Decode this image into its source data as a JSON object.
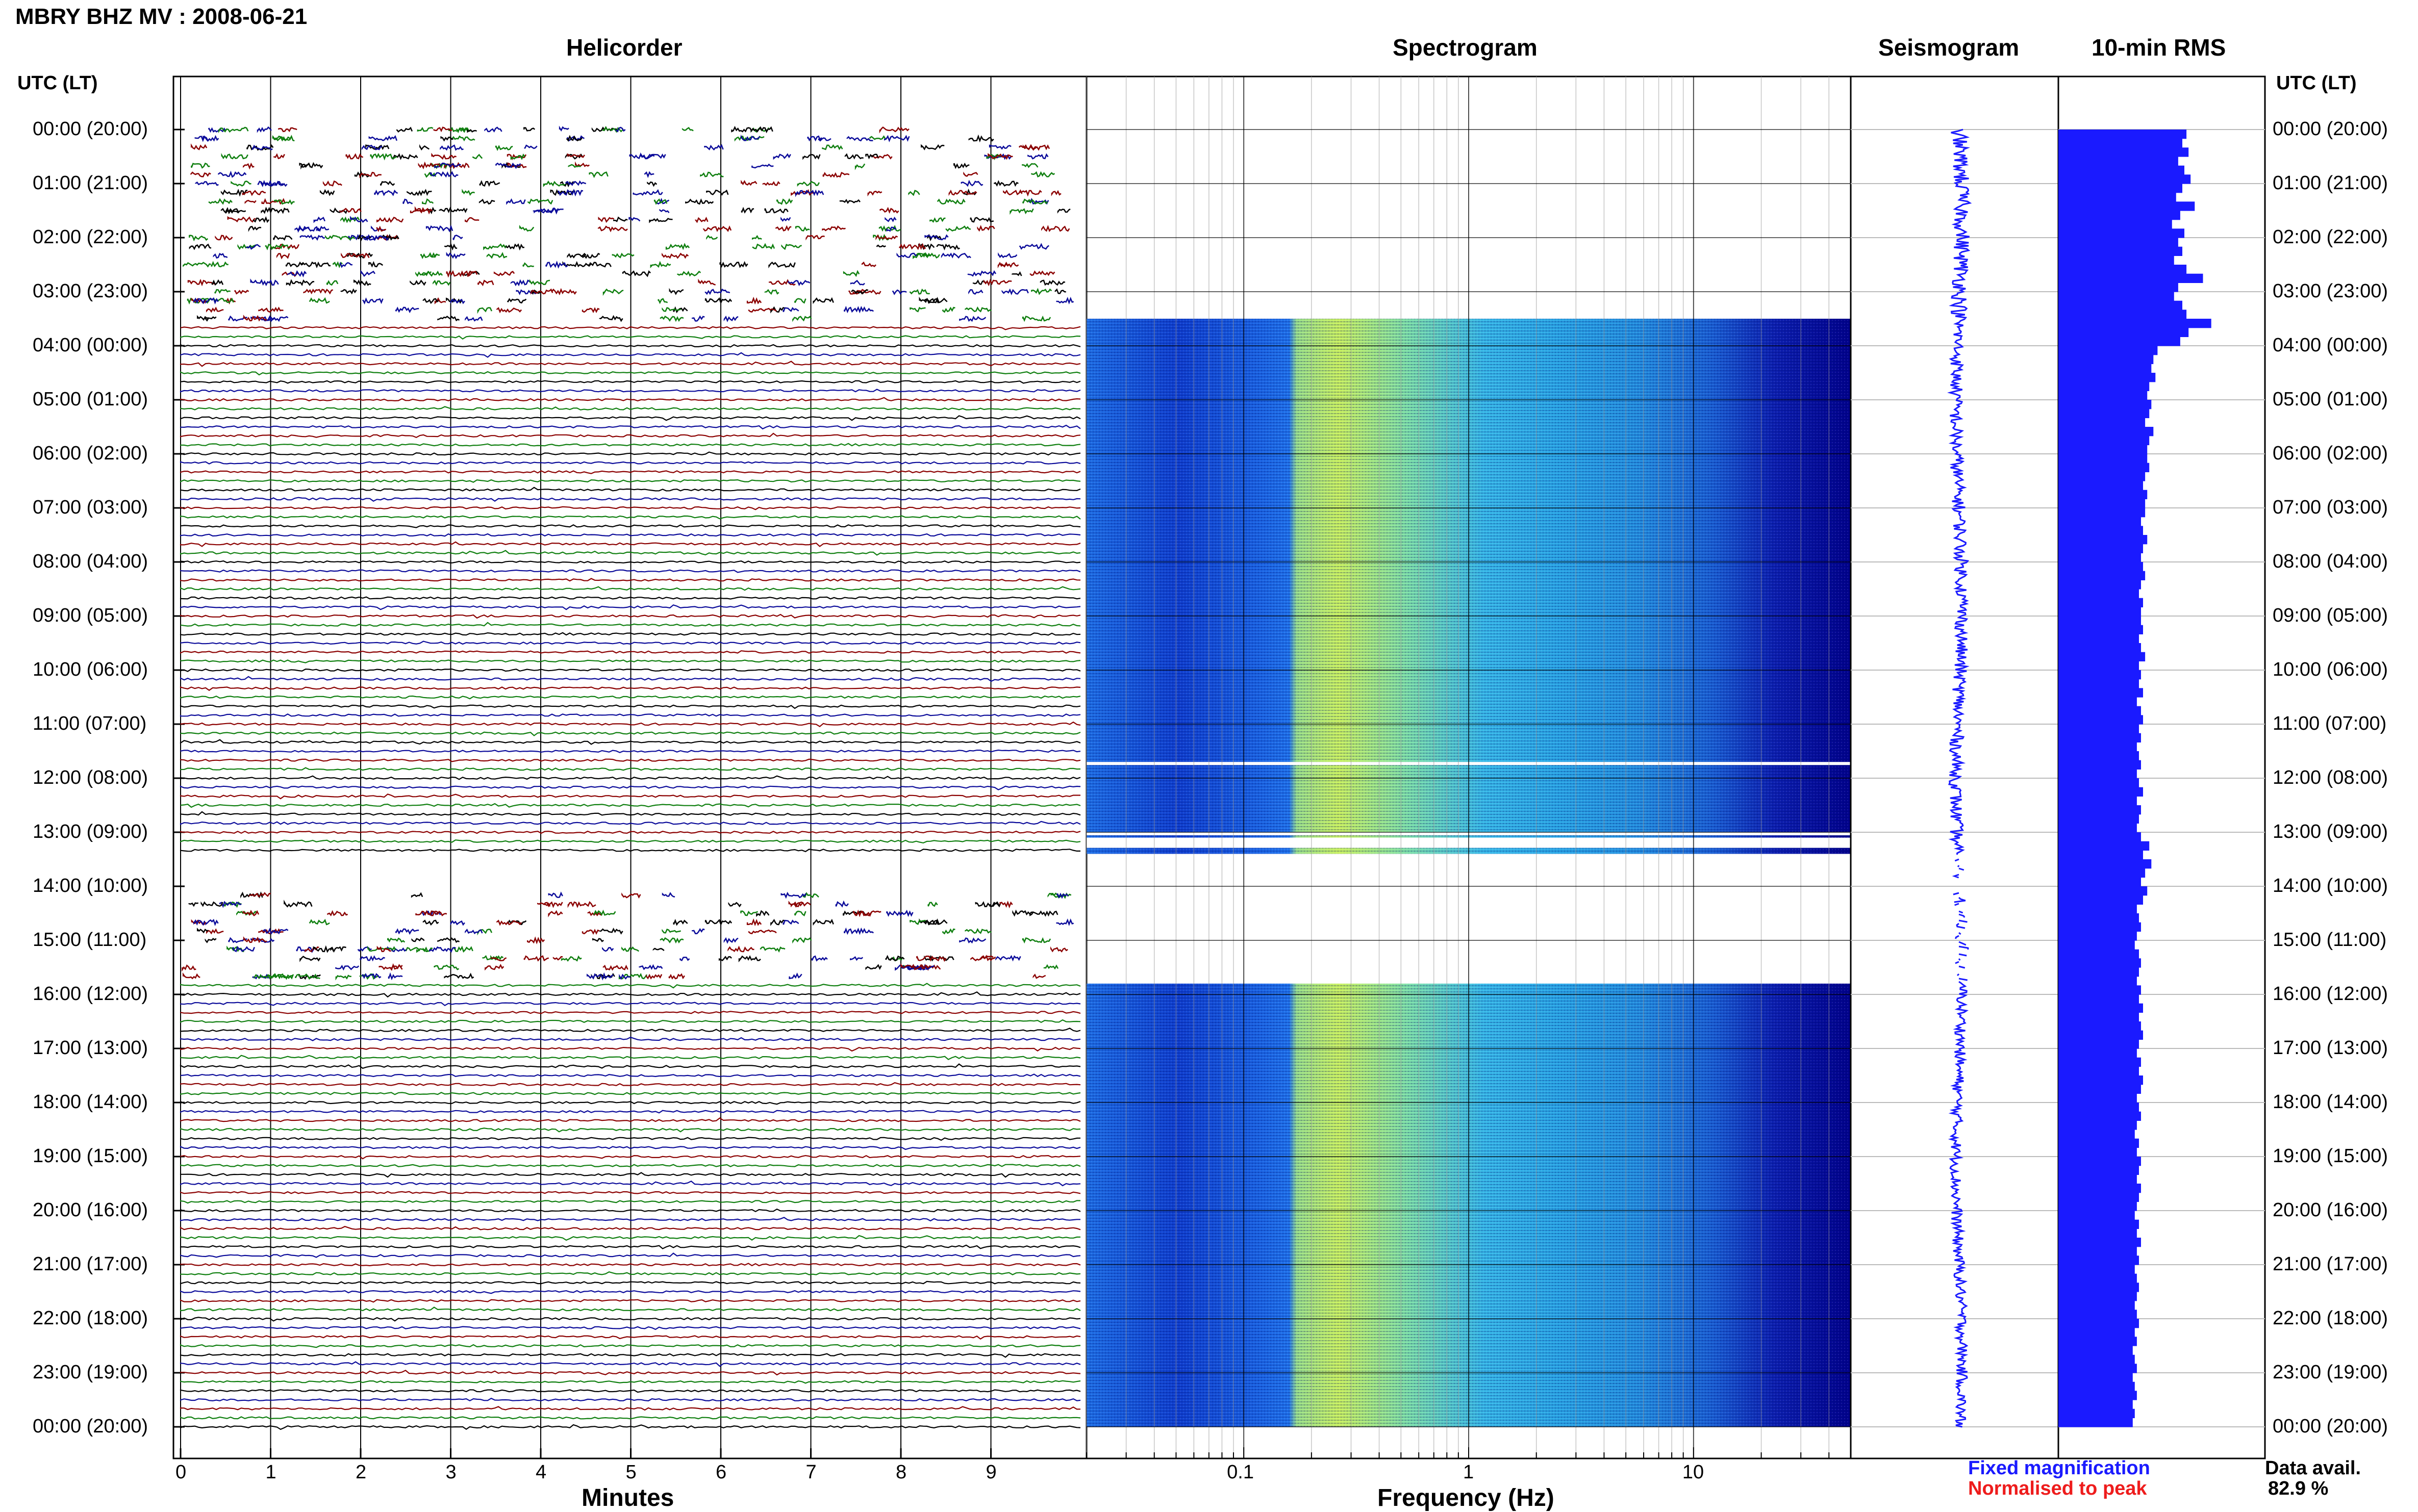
{
  "header": {
    "title": "MBRY BHZ MV : 2008-06-21"
  },
  "panels": {
    "helicorder": "Helicorder",
    "spectrogram": "Spectrogram",
    "seismogram": "Seismogram",
    "rms": "10-min RMS"
  },
  "time_axis": {
    "title": "UTC (LT)",
    "labels": [
      "00:00 (20:00)",
      "01:00 (21:00)",
      "02:00 (22:00)",
      "03:00 (23:00)",
      "04:00 (00:00)",
      "05:00 (01:00)",
      "06:00 (02:00)",
      "07:00 (03:00)",
      "08:00 (04:00)",
      "09:00 (05:00)",
      "10:00 (06:00)",
      "11:00 (07:00)",
      "12:00 (08:00)",
      "13:00 (09:00)",
      "14:00 (10:00)",
      "15:00 (11:00)",
      "16:00 (12:00)",
      "17:00 (13:00)",
      "18:00 (14:00)",
      "19:00 (15:00)",
      "20:00 (16:00)",
      "21:00 (17:00)",
      "22:00 (18:00)",
      "23:00 (19:00)",
      "00:00 (20:00)"
    ]
  },
  "x_axes": {
    "minutes": {
      "label": "Minutes",
      "ticks": [
        "0",
        "1",
        "2",
        "3",
        "4",
        "5",
        "6",
        "7",
        "8",
        "9"
      ]
    },
    "frequency": {
      "label": "Frequency (Hz)",
      "ticks": [
        "0.1",
        "1",
        "10"
      ]
    }
  },
  "legend": {
    "fixed": "Fixed magnification",
    "normalised": "Normalised to peak"
  },
  "availability": {
    "label": "Data avail.",
    "value": "82.9 %"
  },
  "colors": {
    "trace_cycle": [
      "#000000",
      "#0b0b9a",
      "#8b0000",
      "#0f7f0f"
    ],
    "spectrogram_low": "#00008b",
    "spectrogram_high": "#c8f060",
    "seismogram": "#1a1aff",
    "rms_bar": "#1a1aff"
  },
  "chart_data": [
    {
      "type": "heatmap",
      "name": "helicorder",
      "x_unit": "minutes",
      "xlim": [
        0,
        10
      ],
      "y_unit": "hours UTC",
      "ylim": [
        0,
        24
      ],
      "line_interval_minutes": 10,
      "gaps_hours": [
        [
          13.4,
          15.8
        ]
      ],
      "sparse_segments_hours": [
        [
          0,
          3.5
        ],
        [
          14.0,
          15.8
        ]
      ]
    },
    {
      "type": "heatmap",
      "name": "spectrogram",
      "x_unit": "Hz",
      "x_scale": "log",
      "xlim": [
        0.02,
        50
      ],
      "y_unit": "hours UTC",
      "ylim": [
        0,
        24
      ],
      "data_hours": [
        [
          3.5,
          13.4
        ],
        [
          15.8,
          24
        ]
      ],
      "white_lines_hours": [
        11.7,
        13.0,
        13.2
      ],
      "dominant_band_hz": [
        0.2,
        0.6
      ]
    },
    {
      "type": "line",
      "name": "seismogram",
      "y_unit": "hours UTC",
      "ylim": [
        0,
        24
      ],
      "note": ""
    },
    {
      "type": "bar",
      "name": "10-min RMS",
      "y_unit": "hours UTC",
      "bin_minutes": 10,
      "values": [
        0.62,
        0.6,
        0.63,
        0.58,
        0.61,
        0.64,
        0.6,
        0.57,
        0.66,
        0.59,
        0.55,
        0.61,
        0.58,
        0.6,
        0.56,
        0.62,
        0.7,
        0.58,
        0.56,
        0.6,
        0.62,
        0.74,
        0.63,
        0.59,
        0.48,
        0.46,
        0.45,
        0.47,
        0.44,
        0.43,
        0.45,
        0.44,
        0.42,
        0.46,
        0.44,
        0.43,
        0.43,
        0.44,
        0.42,
        0.41,
        0.43,
        0.42,
        0.42,
        0.4,
        0.41,
        0.43,
        0.41,
        0.4,
        0.41,
        0.42,
        0.4,
        0.39,
        0.41,
        0.4,
        0.4,
        0.41,
        0.39,
        0.4,
        0.42,
        0.39,
        0.4,
        0.39,
        0.41,
        0.38,
        0.4,
        0.41,
        0.39,
        0.4,
        0.38,
        0.39,
        0.4,
        0.38,
        0.39,
        0.41,
        0.38,
        0.4,
        0.39,
        0.38,
        0.4,
        0.44,
        0.41,
        0.45,
        0.42,
        0.4,
        0.43,
        0.41,
        0.38,
        0.39,
        0.4,
        0.38,
        0.37,
        0.39,
        0.4,
        0.39,
        0.38,
        0.4,
        0.39,
        0.41,
        0.39,
        0.4,
        0.41,
        0.39,
        0.38,
        0.4,
        0.39,
        0.41,
        0.4,
        0.38,
        0.39,
        0.4,
        0.38,
        0.37,
        0.39,
        0.38,
        0.4,
        0.39,
        0.38,
        0.4,
        0.39,
        0.38,
        0.37,
        0.39,
        0.38,
        0.4,
        0.38,
        0.39,
        0.37,
        0.38,
        0.39,
        0.38,
        0.37,
        0.38,
        0.39,
        0.37,
        0.38,
        0.36,
        0.37,
        0.38,
        0.36,
        0.37,
        0.38,
        0.36,
        0.37,
        0.36
      ]
    }
  ]
}
